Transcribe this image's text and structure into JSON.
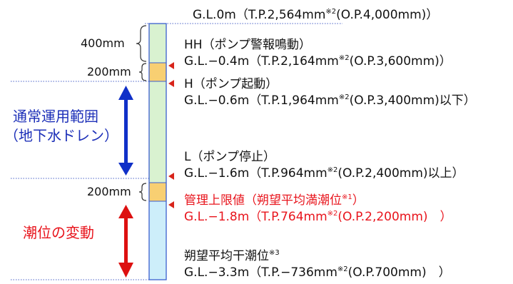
{
  "colors": {
    "column_green": "#d9f2d0",
    "column_yellow": "#f8cf72",
    "column_blue": "#cdeefa",
    "column_border": "#3a5fd0",
    "pointer": "#d8241a",
    "blue_arrow": "#1030c8",
    "red_arrow": "#dd1010",
    "dotted_line": "#4a62c8"
  },
  "levels": {
    "gl0": {
      "gl": "G.L.0m",
      "tp": "（T.P.2,564mm",
      "note": "※2",
      "op": "(O.P.4,000mm)）"
    },
    "hh": {
      "name": "HH（ポンプ警報鳴動）",
      "gl": "G.L.−0.4m",
      "tp": "（T.P.2,164mm",
      "note": "※2",
      "op": "(O.P.3,600mm)）"
    },
    "h": {
      "name": "H（ポンプ起動）",
      "gl": "G.L.−0.6m",
      "tp": "（T.P.1,964mm",
      "note": "※2",
      "op": "(O.P.3,400mm)以下）"
    },
    "l": {
      "name": "L（ポンプ停止）",
      "gl": "G.L.−1.6m",
      "tp": "（T.P.964mm",
      "note": "※2",
      "op": "(O.P.2,400mm)以上）"
    },
    "limit": {
      "name": "管理上限値（朔望平均満潮位",
      "name_note": "※1",
      "name_end": "）",
      "gl": "G.L.−1.8m",
      "tp": "（T.P.764mm",
      "note": "※2",
      "op": "(O.P.2,200mm)　）"
    },
    "low": {
      "name": "朔望平均干潮位",
      "name_note": "※3",
      "gl": "G.L.−3.3m",
      "tp": "（T.P.−736mm",
      "note": "※2",
      "op": "(O.P.700mm)　）"
    }
  },
  "dimensions": {
    "d400": "400mm",
    "d200_upper": "200mm",
    "d200_lower": "200mm"
  },
  "ranges": {
    "normal_line1": "通常運用範囲",
    "normal_line2": "（地下水ドレン）",
    "tide": "潮位の変動"
  }
}
